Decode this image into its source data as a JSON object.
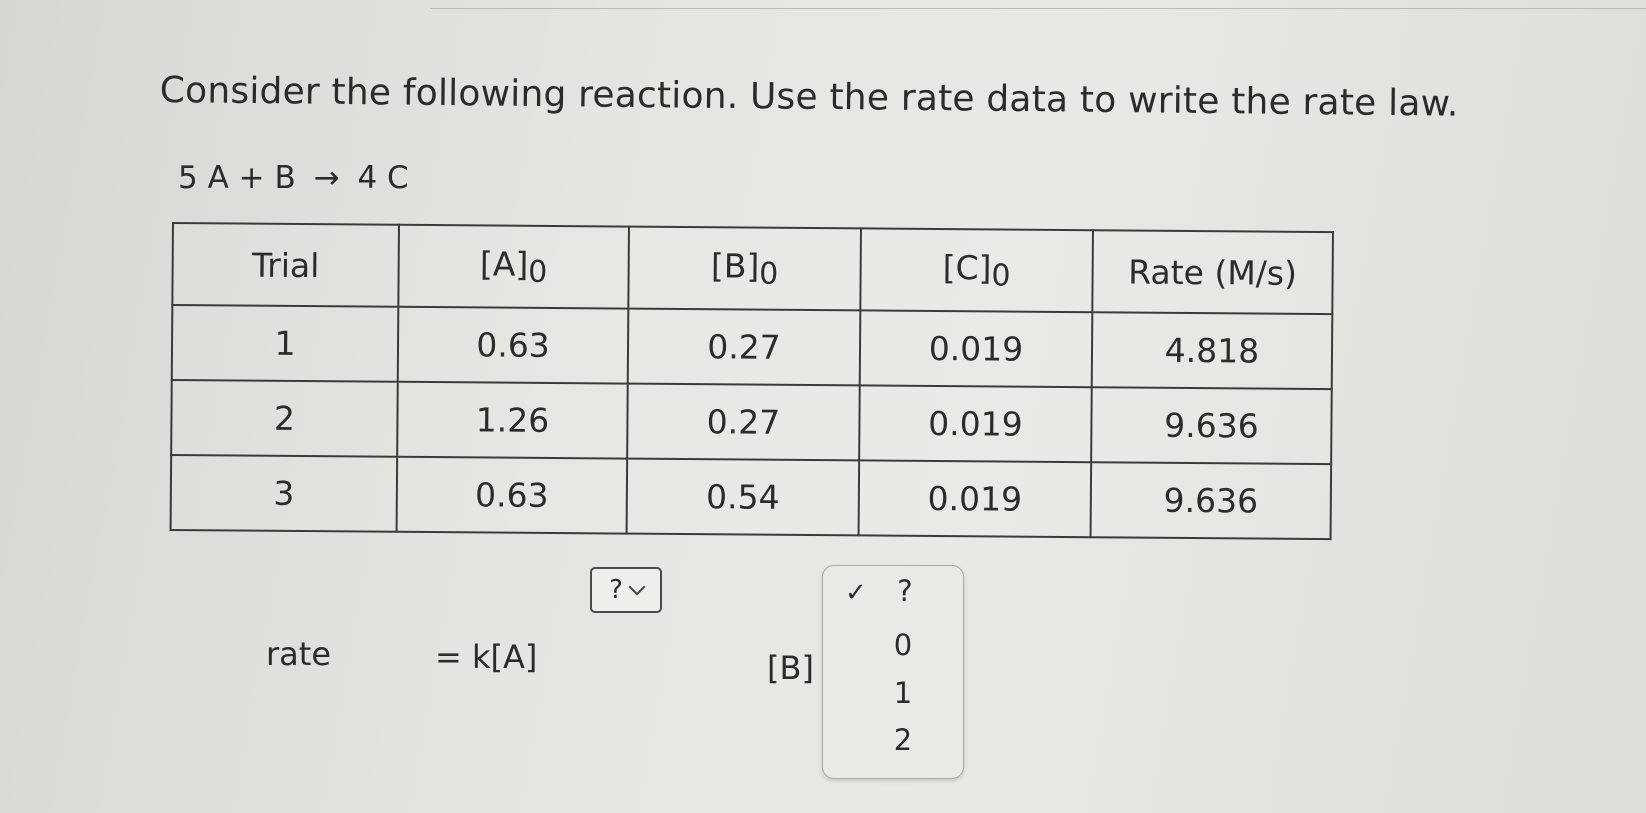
{
  "question": "Consider the following reaction. Use the rate data to write the rate law.",
  "equation": {
    "left": "5 A + B",
    "arrow": "→",
    "right": "4 C"
  },
  "table": {
    "headers": [
      "Trial",
      "[A]",
      "[B]",
      "[C]",
      "Rate (M/s)"
    ],
    "zero_sub": "0",
    "rows": [
      [
        "1",
        "0.63",
        "0.27",
        "0.019",
        "4.818"
      ],
      [
        "2",
        "1.26",
        "0.27",
        "0.019",
        "9.636"
      ],
      [
        "3",
        "0.63",
        "0.54",
        "0.019",
        "9.636"
      ]
    ]
  },
  "rate_law": {
    "label": "rate",
    "k_expr": "= k[A]",
    "b_expr": "[B]",
    "order_a_value": "?",
    "order_b_options": [
      "?",
      "0",
      "1",
      "2"
    ],
    "order_b_selected": "?",
    "check_mark": "✓"
  }
}
